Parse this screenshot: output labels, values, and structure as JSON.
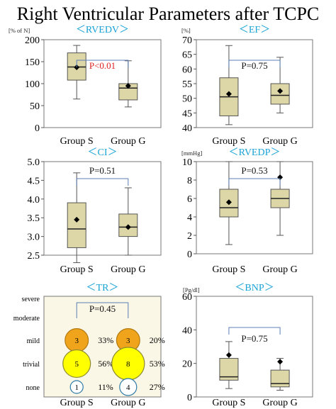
{
  "title": "Right Ventricular Parameters after TCPC",
  "colors": {
    "box_fill": "#ddd6a6",
    "box_stroke": "#555555",
    "panel_title": "#1aa3d6",
    "pval_sig": "#e02020",
    "pval": "#111111",
    "bracket": "#5b7fb5",
    "tr_bg": "#fbf7e6",
    "circle_orange": "#f0a41c",
    "circle_yellow": "#ffff00",
    "circle_white": "#ffffff",
    "circle_border": "#2e7aa6"
  },
  "chart_data": [
    {
      "type": "box",
      "title": "＜RVEDV＞",
      "unit": "[% of N]",
      "ylim": [
        0,
        200
      ],
      "yticks": [
        0,
        50,
        100,
        150,
        200
      ],
      "categories": [
        "Group S",
        "Group G"
      ],
      "boxes": [
        {
          "min": 65,
          "q1": 108,
          "median": 138,
          "q3": 170,
          "max": 187,
          "mean": 137
        },
        {
          "min": 47,
          "q1": 63,
          "median": 90,
          "q3": 100,
          "max": 152,
          "mean": 95
        }
      ],
      "pvalue": "P<0.01",
      "significant": true
    },
    {
      "type": "box",
      "title": "＜EF＞",
      "unit": "[%]",
      "ylim": [
        40,
        70
      ],
      "yticks": [
        40,
        45,
        50,
        55,
        60,
        65,
        70
      ],
      "categories": [
        "Group S",
        "Group G"
      ],
      "boxes": [
        {
          "min": 41,
          "q1": 44,
          "median": 50.5,
          "q3": 57,
          "max": 68,
          "mean": 51.5
        },
        {
          "min": 45,
          "q1": 48,
          "median": 51,
          "q3": 55,
          "max": 64,
          "mean": 52.5
        }
      ],
      "pvalue": "P=0.75",
      "significant": false
    },
    {
      "type": "box",
      "title": "＜CI＞",
      "unit": "",
      "ylim": [
        2.5,
        5.0
      ],
      "yticks": [
        2.5,
        3.0,
        3.5,
        4.0,
        4.5,
        5.0
      ],
      "categories": [
        "Group S",
        "Group G"
      ],
      "boxes": [
        {
          "min": 2.3,
          "q1": 2.7,
          "median": 3.2,
          "q3": 3.9,
          "max": 4.7,
          "mean": 3.45
        },
        {
          "min": 2.5,
          "q1": 3.0,
          "median": 3.25,
          "q3": 3.6,
          "max": 4.3,
          "mean": 3.25
        }
      ],
      "pvalue": "P=0.51",
      "significant": false
    },
    {
      "type": "box",
      "title": "＜RVEDP＞",
      "unit": "[mmHg]",
      "ylim": [
        0,
        10
      ],
      "yticks": [
        0,
        2,
        4,
        6,
        8,
        10
      ],
      "categories": [
        "Group S",
        "Group G"
      ],
      "boxes": [
        {
          "min": 1,
          "q1": 4,
          "median": 5,
          "q3": 7,
          "max": 10,
          "mean": 5.6
        },
        {
          "min": 2,
          "q1": 5,
          "median": 6,
          "q3": 7,
          "max": 10,
          "mean": 8.3
        }
      ],
      "pvalue": "P=0.53",
      "significant": false
    },
    {
      "type": "bubble",
      "title": "＜TR＞",
      "categories": [
        "Group S",
        "Group G"
      ],
      "levels": [
        "severe",
        "moderate",
        "mild",
        "trivial",
        "none"
      ],
      "cells": [
        {
          "group": "Group S",
          "level": "mild",
          "count": 3,
          "percent": "33%"
        },
        {
          "group": "Group S",
          "level": "trivial",
          "count": 5,
          "percent": "56%"
        },
        {
          "group": "Group S",
          "level": "none",
          "count": 1,
          "percent": "11%"
        },
        {
          "group": "Group G",
          "level": "mild",
          "count": 3,
          "percent": "20%"
        },
        {
          "group": "Group G",
          "level": "trivial",
          "count": 8,
          "percent": "53%"
        },
        {
          "group": "Group G",
          "level": "none",
          "count": 4,
          "percent": "27%"
        }
      ],
      "pvalue": "P=0.45",
      "significant": false
    },
    {
      "type": "box",
      "title": "＜BNP＞",
      "unit": "[Pg/dl]",
      "ylim": [
        0,
        60
      ],
      "yticks": [
        0,
        20,
        40,
        60
      ],
      "categories": [
        "Group S",
        "Group G"
      ],
      "boxes": [
        {
          "min": 5,
          "q1": 10,
          "median": 12,
          "q3": 23,
          "max": 33,
          "mean": 25
        },
        {
          "min": 4,
          "q1": 6,
          "median": 8,
          "q3": 16,
          "max": 23,
          "mean": 21
        }
      ],
      "pvalue": "P=0.75",
      "significant": false
    }
  ]
}
